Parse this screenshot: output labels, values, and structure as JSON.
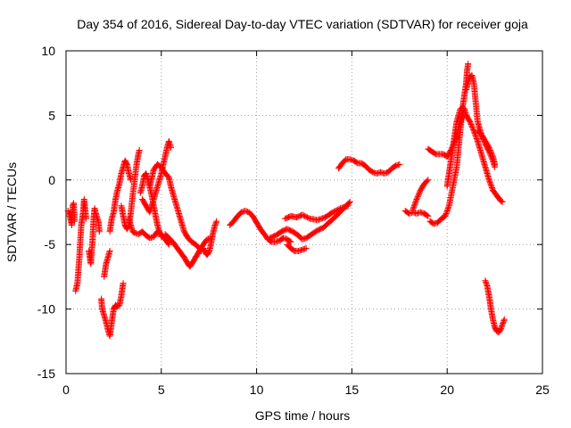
{
  "chart_data": {
    "type": "scatter",
    "title": "Day 354 of 2016, Sidereal Day-to-day VTEC variation (SDTVAR) for receiver goja",
    "xlabel": "GPS time / hours",
    "ylabel": "SDTVAR / TECUs",
    "xlim": [
      0,
      25
    ],
    "ylim": [
      -15,
      10
    ],
    "xticks": [
      0,
      5,
      10,
      15,
      20,
      25
    ],
    "yticks": [
      -15,
      -10,
      -5,
      0,
      5,
      10
    ],
    "grid": true,
    "marker": "+",
    "series_color": "#ff0000",
    "series": [
      {
        "name": "s1",
        "points": [
          [
            0.1,
            -2.4
          ],
          [
            0.2,
            -2.8
          ],
          [
            0.3,
            -3.5
          ],
          [
            0.35,
            -2.0
          ],
          [
            0.4,
            -1.8
          ],
          [
            0.45,
            -3.2
          ]
        ]
      },
      {
        "name": "s2",
        "points": [
          [
            0.5,
            -8.6
          ],
          [
            0.6,
            -8.0
          ],
          [
            0.7,
            -6.0
          ],
          [
            0.8,
            -3.5
          ],
          [
            0.9,
            -2.5
          ],
          [
            0.95,
            -1.5
          ],
          [
            1.0,
            -2.2
          ],
          [
            1.05,
            -3.0
          ]
        ]
      },
      {
        "name": "s3",
        "points": [
          [
            1.2,
            -5.5
          ],
          [
            1.3,
            -6.5
          ],
          [
            1.4,
            -4.5
          ],
          [
            1.45,
            -3.0
          ],
          [
            1.5,
            -2.2
          ],
          [
            1.6,
            -2.8
          ],
          [
            1.7,
            -3.2
          ],
          [
            1.75,
            -4.0
          ]
        ]
      },
      {
        "name": "s4",
        "points": [
          [
            1.85,
            -9.2
          ],
          [
            1.9,
            -10.0
          ],
          [
            2.0,
            -10.5
          ],
          [
            2.1,
            -11.0
          ],
          [
            2.2,
            -11.6
          ],
          [
            2.3,
            -12.1
          ],
          [
            2.4,
            -11.0
          ],
          [
            2.5,
            -10.0
          ],
          [
            2.6,
            -9.7
          ],
          [
            2.7,
            -9.8
          ],
          [
            2.8,
            -9.7
          ],
          [
            2.9,
            -9.0
          ],
          [
            3.0,
            -8.0
          ]
        ]
      },
      {
        "name": "s5",
        "points": [
          [
            2.0,
            -7.5
          ],
          [
            2.1,
            -6.5
          ],
          [
            2.2,
            -6.0
          ],
          [
            2.3,
            -5.5
          ]
        ]
      },
      {
        "name": "s6",
        "points": [
          [
            2.3,
            -4.0
          ],
          [
            2.4,
            -3.0
          ],
          [
            2.5,
            -2.5
          ],
          [
            2.6,
            -1.5
          ],
          [
            2.7,
            -0.8
          ],
          [
            2.8,
            -0.3
          ],
          [
            2.9,
            0.5
          ],
          [
            3.0,
            1.0
          ],
          [
            3.1,
            1.5
          ],
          [
            3.2,
            1.2
          ],
          [
            3.3,
            0.5
          ],
          [
            3.4,
            0.0
          ]
        ]
      },
      {
        "name": "s7",
        "points": [
          [
            2.9,
            -2.0
          ],
          [
            3.0,
            -2.8
          ],
          [
            3.1,
            -3.5
          ],
          [
            3.2,
            -3.8
          ],
          [
            3.3,
            -3.5
          ],
          [
            3.4,
            -2.5
          ],
          [
            3.5,
            -1.2
          ],
          [
            3.6,
            0.0
          ],
          [
            3.7,
            1.2
          ],
          [
            3.8,
            2.0
          ],
          [
            3.85,
            2.3
          ]
        ]
      },
      {
        "name": "s8",
        "points": [
          [
            3.3,
            -3.0
          ],
          [
            3.4,
            -3.5
          ],
          [
            3.5,
            -4.0
          ],
          [
            3.6,
            -4.1
          ],
          [
            3.8,
            -4.2
          ],
          [
            4.0,
            -4.0
          ],
          [
            4.2,
            -4.3
          ],
          [
            4.4,
            -4.5
          ],
          [
            4.6,
            -4.4
          ],
          [
            4.8,
            -4.0
          ],
          [
            5.0,
            -4.2
          ],
          [
            5.2,
            -4.6
          ],
          [
            5.4,
            -5.0
          ]
        ]
      },
      {
        "name": "s9",
        "points": [
          [
            3.9,
            -1.0
          ],
          [
            4.0,
            -0.5
          ],
          [
            4.1,
            0.3
          ],
          [
            4.2,
            0.5
          ],
          [
            4.3,
            0.0
          ],
          [
            4.4,
            -0.6
          ],
          [
            4.5,
            -1.2
          ],
          [
            4.6,
            -2.0
          ],
          [
            4.7,
            -2.8
          ],
          [
            4.8,
            -3.5
          ],
          [
            4.9,
            -4.0
          ],
          [
            5.0,
            -4.4
          ]
        ]
      },
      {
        "name": "s10",
        "points": [
          [
            4.0,
            -1.5
          ],
          [
            4.2,
            -2.0
          ],
          [
            4.4,
            -2.5
          ],
          [
            4.6,
            -1.5
          ],
          [
            4.8,
            -0.5
          ],
          [
            5.0,
            0.5
          ],
          [
            5.1,
            1.2
          ],
          [
            5.2,
            1.8
          ],
          [
            5.3,
            2.5
          ],
          [
            5.4,
            3.0
          ],
          [
            5.5,
            2.5
          ]
        ]
      },
      {
        "name": "s11",
        "points": [
          [
            4.4,
            -0.5
          ],
          [
            4.6,
            0.8
          ],
          [
            4.8,
            1.2
          ],
          [
            5.0,
            1.0
          ],
          [
            5.2,
            0.5
          ],
          [
            5.4,
            0.2
          ],
          [
            5.5,
            -0.5
          ],
          [
            5.6,
            -1.0
          ],
          [
            5.8,
            -2.0
          ],
          [
            6.0,
            -3.0
          ],
          [
            6.2,
            -4.0
          ],
          [
            6.4,
            -4.5
          ],
          [
            6.6,
            -4.8
          ],
          [
            6.8,
            -5.0
          ],
          [
            7.0,
            -5.3
          ],
          [
            7.1,
            -5.5
          ]
        ]
      },
      {
        "name": "s12",
        "points": [
          [
            5.2,
            -4.2
          ],
          [
            5.4,
            -4.5
          ],
          [
            5.6,
            -4.8
          ],
          [
            5.8,
            -5.2
          ],
          [
            6.0,
            -5.6
          ],
          [
            6.2,
            -6.0
          ],
          [
            6.4,
            -6.5
          ],
          [
            6.5,
            -6.7
          ],
          [
            6.6,
            -6.5
          ],
          [
            6.8,
            -6.0
          ],
          [
            7.0,
            -5.5
          ],
          [
            7.2,
            -5.0
          ],
          [
            7.4,
            -4.6
          ],
          [
            7.6,
            -4.5
          ]
        ]
      },
      {
        "name": "s13",
        "points": [
          [
            7.2,
            -5.3
          ],
          [
            7.3,
            -5.6
          ],
          [
            7.4,
            -5.8
          ],
          [
            7.5,
            -5.6
          ],
          [
            7.6,
            -5.0
          ],
          [
            7.7,
            -4.2
          ],
          [
            7.8,
            -3.6
          ],
          [
            7.9,
            -3.2
          ]
        ]
      },
      {
        "name": "s14",
        "points": [
          [
            8.6,
            -3.5
          ],
          [
            8.8,
            -3.2
          ],
          [
            9.0,
            -2.8
          ],
          [
            9.2,
            -2.5
          ],
          [
            9.4,
            -2.4
          ],
          [
            9.6,
            -2.5
          ],
          [
            9.8,
            -2.8
          ],
          [
            10.0,
            -3.3
          ],
          [
            10.2,
            -3.8
          ],
          [
            10.4,
            -4.2
          ],
          [
            10.6,
            -4.6
          ],
          [
            10.8,
            -4.8
          ],
          [
            11.0,
            -4.8
          ],
          [
            11.2,
            -4.7
          ],
          [
            11.4,
            -4.5
          ],
          [
            11.6,
            -4.6
          ],
          [
            11.8,
            -4.8
          ]
        ]
      },
      {
        "name": "s15",
        "points": [
          [
            10.7,
            -4.5
          ],
          [
            11.0,
            -4.3
          ],
          [
            11.3,
            -4.0
          ],
          [
            11.6,
            -3.8
          ],
          [
            11.9,
            -4.0
          ],
          [
            12.2,
            -4.3
          ],
          [
            12.4,
            -4.6
          ],
          [
            12.6,
            -4.5
          ],
          [
            12.9,
            -4.2
          ],
          [
            13.2,
            -3.9
          ],
          [
            13.5,
            -3.7
          ],
          [
            13.8,
            -3.3
          ],
          [
            14.1,
            -2.9
          ],
          [
            14.3,
            -2.6
          ],
          [
            14.5,
            -2.3
          ],
          [
            14.7,
            -2.0
          ],
          [
            14.9,
            -1.7
          ]
        ]
      },
      {
        "name": "s16",
        "points": [
          [
            11.6,
            -5.0
          ],
          [
            11.8,
            -5.3
          ],
          [
            12.0,
            -5.5
          ],
          [
            12.2,
            -5.5
          ],
          [
            12.4,
            -5.4
          ],
          [
            12.6,
            -5.3
          ]
        ]
      },
      {
        "name": "s17",
        "points": [
          [
            11.5,
            -3.0
          ],
          [
            11.8,
            -2.8
          ],
          [
            12.1,
            -2.9
          ],
          [
            12.4,
            -2.7
          ],
          [
            12.8,
            -3.0
          ],
          [
            13.2,
            -3.1
          ],
          [
            13.6,
            -2.9
          ],
          [
            14.0,
            -2.5
          ],
          [
            14.4,
            -2.2
          ],
          [
            14.8,
            -2.0
          ]
        ]
      },
      {
        "name": "s18",
        "points": [
          [
            14.3,
            0.9
          ],
          [
            14.5,
            1.3
          ],
          [
            14.7,
            1.6
          ],
          [
            14.9,
            1.6
          ],
          [
            15.1,
            1.5
          ],
          [
            15.3,
            1.3
          ],
          [
            15.5,
            1.3
          ],
          [
            15.7,
            1.1
          ],
          [
            15.9,
            0.8
          ],
          [
            16.1,
            0.6
          ],
          [
            16.3,
            0.5
          ],
          [
            16.5,
            0.6
          ],
          [
            16.7,
            0.5
          ],
          [
            16.9,
            0.6
          ],
          [
            17.1,
            0.9
          ],
          [
            17.3,
            1.1
          ],
          [
            17.5,
            1.2
          ]
        ]
      },
      {
        "name": "s19",
        "points": [
          [
            17.8,
            -2.4
          ],
          [
            18.0,
            -2.6
          ],
          [
            18.2,
            -2.5
          ],
          [
            18.4,
            -2.6
          ],
          [
            18.6,
            -2.5
          ],
          [
            18.8,
            -2.6
          ],
          [
            19.0,
            -2.8
          ]
        ]
      },
      {
        "name": "s20",
        "points": [
          [
            18.2,
            -2.3
          ],
          [
            18.4,
            -1.5
          ],
          [
            18.6,
            -0.8
          ],
          [
            18.8,
            -0.3
          ],
          [
            19.0,
            0.0
          ]
        ]
      },
      {
        "name": "s21",
        "points": [
          [
            19.0,
            2.4
          ],
          [
            19.2,
            2.2
          ],
          [
            19.4,
            2.0
          ],
          [
            19.6,
            2.0
          ],
          [
            19.8,
            2.0
          ],
          [
            20.0,
            1.8
          ],
          [
            20.2,
            2.3
          ],
          [
            20.4,
            3.0
          ],
          [
            20.6,
            4.0
          ],
          [
            20.8,
            5.0
          ],
          [
            20.9,
            5.5
          ]
        ]
      },
      {
        "name": "s22",
        "points": [
          [
            19.1,
            -3.2
          ],
          [
            19.3,
            -3.4
          ],
          [
            19.5,
            -3.3
          ],
          [
            19.7,
            -3.0
          ],
          [
            19.9,
            -2.8
          ],
          [
            20.1,
            -2.0
          ],
          [
            20.3,
            -0.5
          ],
          [
            20.5,
            1.0
          ],
          [
            20.6,
            2.5
          ],
          [
            20.7,
            4.0
          ],
          [
            20.8,
            5.5
          ],
          [
            20.9,
            6.5
          ],
          [
            21.0,
            7.5
          ],
          [
            21.05,
            8.5
          ],
          [
            21.1,
            9.0
          ]
        ]
      },
      {
        "name": "s23",
        "points": [
          [
            20.0,
            -0.5
          ],
          [
            20.1,
            0.5
          ],
          [
            20.2,
            1.5
          ],
          [
            20.3,
            2.5
          ],
          [
            20.4,
            3.5
          ],
          [
            20.5,
            4.5
          ],
          [
            20.6,
            5.0
          ],
          [
            20.7,
            5.5
          ],
          [
            20.8,
            5.6
          ],
          [
            20.9,
            5.5
          ],
          [
            21.0,
            5.0
          ],
          [
            21.2,
            4.5
          ],
          [
            21.4,
            3.8
          ],
          [
            21.6,
            3.0
          ],
          [
            21.8,
            2.0
          ],
          [
            22.0,
            1.0
          ],
          [
            22.2,
            0.0
          ],
          [
            22.4,
            -0.8
          ],
          [
            22.6,
            -1.2
          ],
          [
            22.8,
            -1.6
          ],
          [
            22.9,
            -1.7
          ]
        ]
      },
      {
        "name": "s24",
        "points": [
          [
            21.0,
            7.0
          ],
          [
            21.1,
            7.6
          ],
          [
            21.2,
            8.0
          ],
          [
            21.3,
            8.1
          ],
          [
            21.4,
            7.5
          ],
          [
            21.5,
            6.0
          ],
          [
            21.6,
            4.5
          ],
          [
            21.7,
            4.0
          ],
          [
            21.8,
            3.5
          ],
          [
            22.0,
            2.8
          ],
          [
            22.2,
            2.2
          ],
          [
            22.4,
            1.5
          ],
          [
            22.5,
            1.0
          ]
        ]
      },
      {
        "name": "s25",
        "points": [
          [
            21.6,
            3.8
          ],
          [
            21.8,
            3.5
          ],
          [
            22.0,
            3.0
          ],
          [
            22.2,
            2.5
          ],
          [
            22.4,
            1.8
          ],
          [
            22.5,
            1.2
          ]
        ]
      },
      {
        "name": "s26",
        "points": [
          [
            22.0,
            -7.8
          ],
          [
            22.1,
            -8.2
          ],
          [
            22.2,
            -9.0
          ],
          [
            22.3,
            -10.0
          ],
          [
            22.4,
            -10.8
          ],
          [
            22.5,
            -11.4
          ],
          [
            22.6,
            -11.7
          ],
          [
            22.7,
            -11.8
          ],
          [
            22.8,
            -11.6
          ],
          [
            22.9,
            -11.2
          ],
          [
            23.0,
            -10.8
          ]
        ]
      }
    ]
  }
}
